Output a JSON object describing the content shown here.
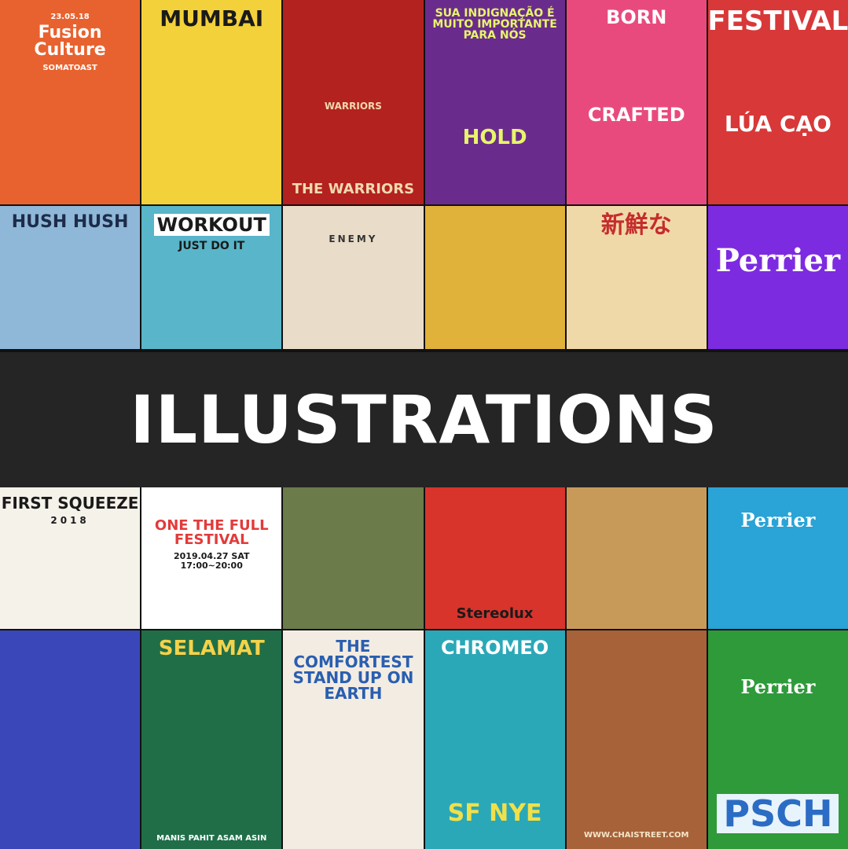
{
  "banner": {
    "title": "ILLUSTRATIONS"
  },
  "top_row1": [
    {
      "lines": [
        "23.05.18",
        "Fusion Culture",
        "SOMATOAST"
      ],
      "bg": "#e8622f",
      "fg": "#ffffff",
      "name": "tile-fusion-culture"
    },
    {
      "lines": [
        "MUMBAI",
        ""
      ],
      "bg": "#f3d13a",
      "fg": "#1a1a1a",
      "name": "tile-mumbai"
    },
    {
      "lines": [
        "WARRIORS",
        "THE WARRIORS"
      ],
      "bg": "#b3221e",
      "fg": "#f1d9b0",
      "name": "tile-warriors"
    },
    {
      "lines": [
        "SUA INDIGNAÇÃO É MUITO IMPORTANTE PARA NÓS",
        "HOLD"
      ],
      "bg": "#6a2c8c",
      "fg": "#e7f56a",
      "name": "tile-hold"
    },
    {
      "lines": [
        "BORN",
        "CRAFTED"
      ],
      "bg": "#e94a7e",
      "fg": "#ffffff",
      "name": "tile-crafted"
    },
    {
      "lines": [
        "FESTIVAL",
        "LÚA  CẠO"
      ],
      "bg": "#d83838",
      "fg": "#ffffff",
      "name": "tile-festival-lua"
    }
  ],
  "top_row2": [
    {
      "lines": [
        "HUSH HUSH",
        ""
      ],
      "bg": "#8fb7d8",
      "fg": "#1d2c4a",
      "name": "tile-hush-hush"
    },
    {
      "lines": [
        "WORKOUT",
        "JUST DO IT"
      ],
      "bg": "#59b5c9",
      "fg": "#1a1a1a",
      "name": "tile-workout"
    },
    {
      "lines": [
        "ENEMY",
        ""
      ],
      "bg": "#e9dcc8",
      "fg": "#333333",
      "name": "tile-enemy"
    },
    {
      "lines": [
        "",
        ""
      ],
      "bg": "#e0b23a",
      "fg": "#1a1a1a",
      "name": "tile-manga"
    },
    {
      "lines": [
        "新鮮な",
        ""
      ],
      "bg": "#f0d9a8",
      "fg": "#c52d2d",
      "name": "tile-ramen"
    },
    {
      "lines": [
        "Perrier",
        ""
      ],
      "bg": "#7d2be0",
      "fg": "#ffffff",
      "name": "tile-perrier-purple"
    }
  ],
  "bottom_row1": [
    {
      "lines": [
        "FIRST SQUEEZE",
        "2018"
      ],
      "bg": "#f5f2ea",
      "fg": "#1a1a1a",
      "name": "tile-first-squeeze"
    },
    {
      "lines": [
        "ONE THE FULL FESTIVAL",
        "2019.04.27 SAT 17:00~20:00"
      ],
      "bg": "#ffffff",
      "fg": "#e23b3b",
      "name": "tile-one-the-full"
    },
    {
      "lines": [
        "",
        ""
      ],
      "bg": "#6b7b4a",
      "fg": "#ffffff",
      "name": "tile-giant"
    },
    {
      "lines": [
        "Stereolux",
        ""
      ],
      "bg": "#d8342c",
      "fg": "#1a1a1a",
      "name": "tile-stereolux"
    },
    {
      "lines": [
        "",
        ""
      ],
      "bg": "#c89a5a",
      "fg": "#ffffff",
      "name": "tile-noodle-flower"
    },
    {
      "lines": [
        "Perrier",
        ""
      ],
      "bg": "#2aa3d6",
      "fg": "#ffffff",
      "name": "tile-perrier-bottle"
    }
  ],
  "bottom_row2": [
    {
      "lines": [
        "",
        ""
      ],
      "bg": "#3a47b8",
      "fg": "#ffffff",
      "name": "tile-ufo"
    },
    {
      "lines": [
        "SELAMAT",
        "MANIS  PAHIT  ASAM  ASIN"
      ],
      "bg": "#1f6e48",
      "fg": "#f4d24a",
      "name": "tile-selamat"
    },
    {
      "lines": [
        "THE COMFORTEST STAND UP ON EARTH",
        ""
      ],
      "bg": "#f3ece2",
      "fg": "#2a5fb0",
      "name": "tile-comfortest"
    },
    {
      "lines": [
        "CHROMEO",
        "SF  NYE"
      ],
      "bg": "#2aa8b8",
      "fg": "#ffffff",
      "name": "tile-chromeo"
    },
    {
      "lines": [
        "",
        "WWW.CHAISTREET.COM"
      ],
      "bg": "#a8623a",
      "fg": "#f5e6c8",
      "name": "tile-chai-street"
    },
    {
      "lines": [
        "Perrier",
        "PSCH"
      ],
      "bg": "#2f9a3a",
      "fg": "#ffffff",
      "name": "tile-perrier-psch"
    }
  ]
}
